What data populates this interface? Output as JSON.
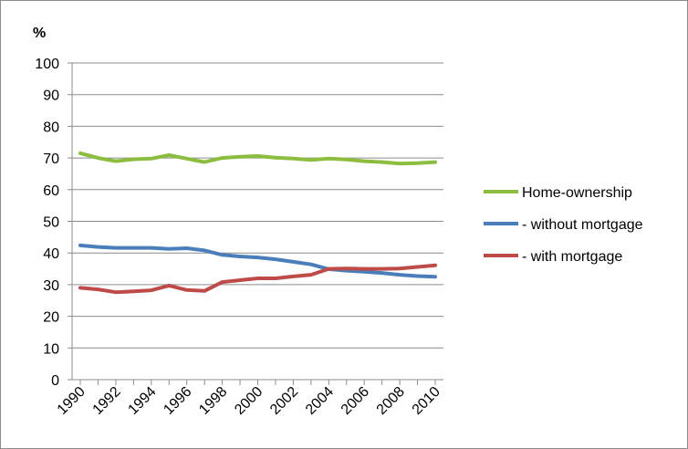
{
  "chart_data": {
    "type": "line",
    "title": "",
    "xlabel": "",
    "ylabel": "%",
    "ylim": [
      0,
      100
    ],
    "yticks": [
      0,
      10,
      20,
      30,
      40,
      50,
      60,
      70,
      80,
      90,
      100
    ],
    "xlim": [
      1990,
      2010
    ],
    "xticks": [
      1990,
      1992,
      1994,
      1996,
      1998,
      2000,
      2002,
      2004,
      2006,
      2008,
      2010
    ],
    "grid": "horizontal",
    "legend": "right",
    "x": [
      1990,
      1991,
      1992,
      1993,
      1994,
      1995,
      1996,
      1997,
      1998,
      1999,
      2000,
      2001,
      2002,
      2003,
      2004,
      2005,
      2006,
      2007,
      2008,
      2009,
      2010
    ],
    "series": [
      {
        "name": "Home-ownership",
        "color": "#8cbd3f",
        "values": [
          71.5,
          70.0,
          69.0,
          69.6,
          69.8,
          70.9,
          69.8,
          68.7,
          70.0,
          70.4,
          70.6,
          70.1,
          69.8,
          69.4,
          69.8,
          69.5,
          69.0,
          68.7,
          68.2,
          68.4,
          68.7
        ]
      },
      {
        "name": "- without mortgage",
        "color": "#4a7ebb",
        "values": [
          42.4,
          41.9,
          41.6,
          41.6,
          41.6,
          41.3,
          41.5,
          40.8,
          39.4,
          38.9,
          38.6,
          38.0,
          37.2,
          36.4,
          34.9,
          34.4,
          34.1,
          33.7,
          33.1,
          32.7,
          32.5
        ]
      },
      {
        "name": "- with mortgage",
        "color": "#be4b48",
        "values": [
          29.0,
          28.5,
          27.6,
          27.9,
          28.2,
          29.7,
          28.3,
          28.0,
          30.8,
          31.4,
          32.0,
          32.0,
          32.6,
          33.1,
          35.0,
          35.1,
          35.0,
          35.0,
          35.1,
          35.6,
          36.1
        ]
      }
    ]
  }
}
